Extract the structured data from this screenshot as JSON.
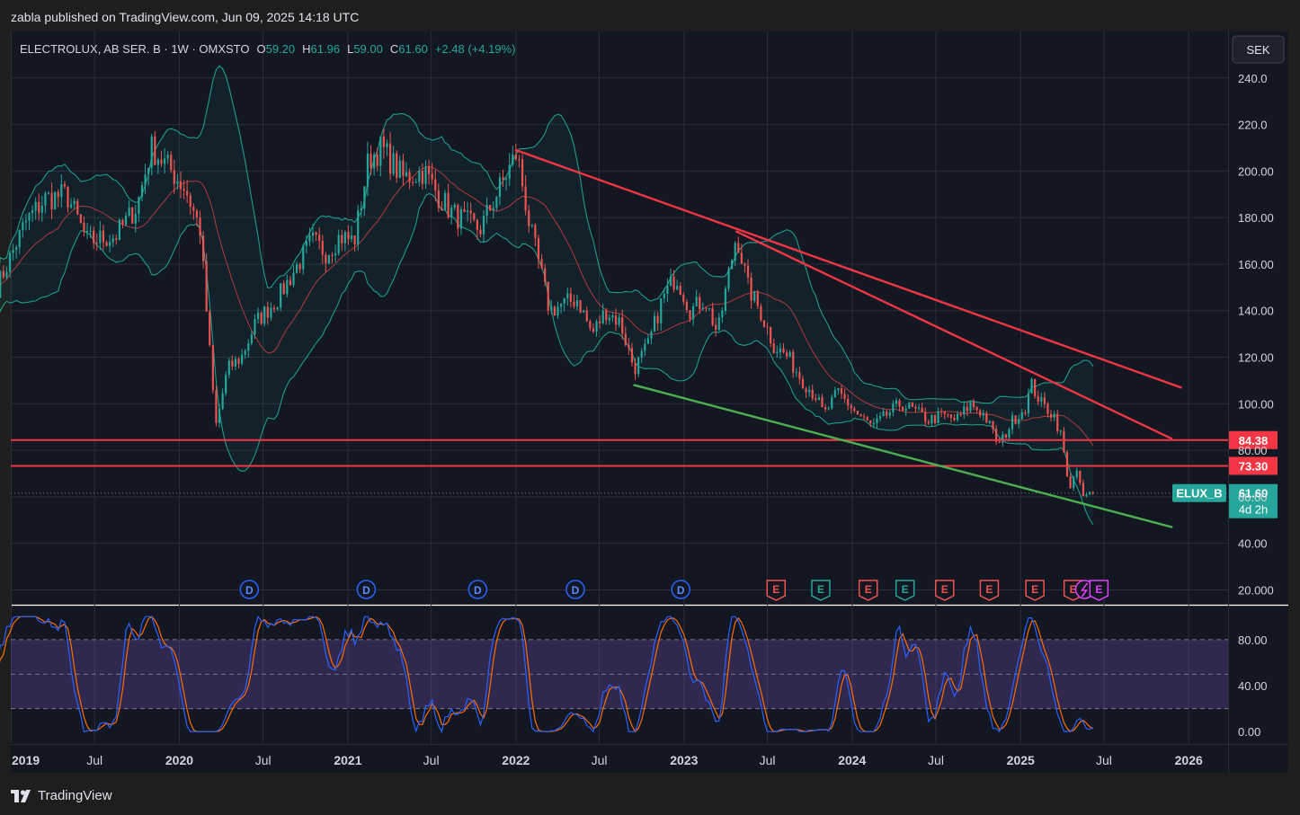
{
  "header": {
    "published": "zabla published on TradingView.com, Jun 09, 2025 14:18 UTC"
  },
  "legend": {
    "symbol": "ELECTROLUX, AB SER. B · 1W · OMXSTO",
    "o_label": "O",
    "o_value": "59.20",
    "h_label": "H",
    "h_value": "61.96",
    "l_label": "L",
    "l_value": "59.00",
    "c_label": "C",
    "c_value": "61.60",
    "change": "+2.48 (+4.19%)"
  },
  "currency_button": "SEK",
  "footer": {
    "brand": "TradingView"
  },
  "colors": {
    "background": "#131722",
    "candle_up": "#26a69a",
    "candle_down": "#ef5350",
    "bollinger": "#1e9c8a",
    "basis": "#b23a3a",
    "trendline_red": "#f23645",
    "trendline_green": "#4caf50",
    "stoch_k": "#2962ff",
    "stoch_d": "#ff6d00",
    "stoch_band": "#7e57c2"
  },
  "chart_data": {
    "type": "candlestick",
    "symbol": "ELUX_B",
    "timeframe": "1W",
    "price_axis": {
      "ticks": [
        "240.0",
        "220.0",
        "200.00",
        "180.00",
        "160.00",
        "140.00",
        "120.00",
        "100.00",
        "80.00",
        "60.00",
        "40.00",
        "20.000"
      ],
      "values": [
        240,
        220,
        200,
        180,
        160,
        140,
        120,
        100,
        80,
        60,
        40,
        20
      ],
      "range": [
        14,
        260
      ]
    },
    "time_axis": {
      "labels": [
        "2019",
        "Jul",
        "2020",
        "Jul",
        "2021",
        "Jul",
        "2022",
        "Jul",
        "2023",
        "Jul",
        "2024",
        "Jul",
        "2025",
        "Jul",
        "2026"
      ],
      "dates": [
        "2019-01-01",
        "2019-07-01",
        "2020-01-01",
        "2020-07-01",
        "2021-01-01",
        "2021-07-01",
        "2022-01-01",
        "2022-07-01",
        "2023-01-01",
        "2023-07-01",
        "2024-01-01",
        "2024-07-01",
        "2025-01-01",
        "2025-07-01",
        "2026-01-01"
      ]
    },
    "price_series": [
      [
        "2018-12-01",
        150
      ],
      [
        "2019-02-01",
        178
      ],
      [
        "2019-03-15",
        188
      ],
      [
        "2019-05-01",
        190
      ],
      [
        "2019-06-15",
        170
      ],
      [
        "2019-08-15",
        172
      ],
      [
        "2019-10-01",
        185
      ],
      [
        "2019-11-01",
        210
      ],
      [
        "2019-12-15",
        200
      ],
      [
        "2020-01-15",
        192
      ],
      [
        "2020-02-15",
        175
      ],
      [
        "2020-03-20",
        90
      ],
      [
        "2020-04-15",
        115
      ],
      [
        "2020-05-15",
        120
      ],
      [
        "2020-06-15",
        135
      ],
      [
        "2020-08-01",
        145
      ],
      [
        "2020-09-15",
        160
      ],
      [
        "2020-10-15",
        170
      ],
      [
        "2020-11-15",
        165
      ],
      [
        "2020-12-15",
        172
      ],
      [
        "2021-01-15",
        170
      ],
      [
        "2021-02-15",
        205
      ],
      [
        "2021-03-15",
        210
      ],
      [
        "2021-05-01",
        197
      ],
      [
        "2021-06-15",
        200
      ],
      [
        "2021-07-15",
        190
      ],
      [
        "2021-08-15",
        182
      ],
      [
        "2021-09-15",
        178
      ],
      [
        "2021-10-15",
        175
      ],
      [
        "2021-11-15",
        188
      ],
      [
        "2021-12-15",
        200
      ],
      [
        "2022-01-03",
        208
      ],
      [
        "2022-02-01",
        175
      ],
      [
        "2022-02-20",
        160
      ],
      [
        "2022-03-15",
        140
      ],
      [
        "2022-04-15",
        143
      ],
      [
        "2022-05-15",
        145
      ],
      [
        "2022-06-15",
        130
      ],
      [
        "2022-07-15",
        140
      ],
      [
        "2022-08-15",
        135
      ],
      [
        "2022-09-15",
        115
      ],
      [
        "2022-10-15",
        125
      ],
      [
        "2022-11-15",
        145
      ],
      [
        "2022-12-15",
        155
      ],
      [
        "2023-01-15",
        140
      ],
      [
        "2023-02-15",
        145
      ],
      [
        "2023-03-15",
        130
      ],
      [
        "2023-04-01",
        148
      ],
      [
        "2023-04-25",
        173
      ],
      [
        "2023-05-20",
        150
      ],
      [
        "2023-06-15",
        140
      ],
      [
        "2023-07-15",
        125
      ],
      [
        "2023-08-15",
        120
      ],
      [
        "2023-09-15",
        110
      ],
      [
        "2023-10-15",
        103
      ],
      [
        "2023-11-01",
        95
      ],
      [
        "2023-12-01",
        105
      ],
      [
        "2024-01-15",
        95
      ],
      [
        "2024-02-15",
        90
      ],
      [
        "2024-03-15",
        95
      ],
      [
        "2024-04-15",
        100
      ],
      [
        "2024-05-15",
        97
      ],
      [
        "2024-06-15",
        93
      ],
      [
        "2024-07-15",
        95
      ],
      [
        "2024-08-15",
        93
      ],
      [
        "2024-09-15",
        100
      ],
      [
        "2024-10-15",
        95
      ],
      [
        "2024-11-15",
        82
      ],
      [
        "2024-12-15",
        93
      ],
      [
        "2025-01-10",
        98
      ],
      [
        "2025-01-25",
        108
      ],
      [
        "2025-02-15",
        100
      ],
      [
        "2025-03-15",
        95
      ],
      [
        "2025-04-01",
        85
      ],
      [
        "2025-04-15",
        63
      ],
      [
        "2025-05-01",
        72
      ],
      [
        "2025-05-15",
        60
      ],
      [
        "2025-06-09",
        61.6
      ]
    ],
    "indicators": {
      "bollinger_bands": true,
      "stochastic": {
        "axis_ticks": [
          "80.00",
          "40.00",
          "0.00"
        ],
        "axis_values": [
          80,
          40,
          0
        ],
        "band": [
          20,
          80
        ],
        "range": [
          -10,
          108
        ]
      }
    },
    "horizontal_levels": [
      {
        "value": 84.38,
        "label": "84.38"
      },
      {
        "value": 73.3,
        "label": "73.30"
      }
    ],
    "current_price": {
      "label": "ELUX_B",
      "value": 61.6,
      "value_label": "61.60",
      "countdown": "4d 2h"
    },
    "trendlines": [
      {
        "color": "red",
        "from": [
          "2022-01-01",
          209
        ],
        "to": [
          "2025-12-15",
          107
        ]
      },
      {
        "color": "red",
        "from": [
          "2023-04-25",
          174
        ],
        "to": [
          "2025-11-25",
          85
        ]
      },
      {
        "color": "green",
        "from": [
          "2022-09-15",
          108
        ],
        "to": [
          "2025-11-25",
          47
        ]
      }
    ],
    "events": [
      {
        "type": "D",
        "date": "2020-06-01"
      },
      {
        "type": "D",
        "date": "2021-02-10"
      },
      {
        "type": "D",
        "date": "2021-10-10"
      },
      {
        "type": "D",
        "date": "2022-05-10"
      },
      {
        "type": "D",
        "date": "2022-12-25"
      },
      {
        "type": "E",
        "date": "2023-07-20"
      },
      {
        "type": "E",
        "date": "2023-10-25"
      },
      {
        "type": "E",
        "date": "2024-02-05"
      },
      {
        "type": "E",
        "date": "2024-04-25"
      },
      {
        "type": "E",
        "date": "2024-07-20"
      },
      {
        "type": "E",
        "date": "2024-10-25"
      },
      {
        "type": "E",
        "date": "2025-02-01"
      },
      {
        "type": "E",
        "date": "2025-04-25"
      },
      {
        "type": "split",
        "date": "2025-05-20"
      },
      {
        "type": "E-upcoming",
        "date": "2025-06-20"
      }
    ]
  }
}
